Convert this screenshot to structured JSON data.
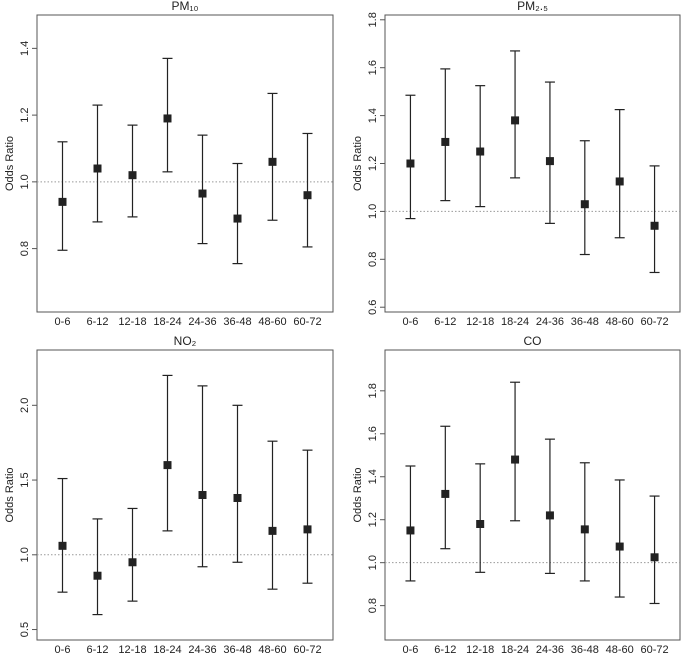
{
  "chart_data": [
    {
      "type": "errorbar",
      "title": "PM₁₀",
      "ylabel": "Odds Ratio",
      "reference_line": 1.0,
      "categories": [
        "0-6",
        "6-12",
        "12-18",
        "18-24",
        "24-36",
        "36-48",
        "48-60",
        "60-72"
      ],
      "values": [
        0.94,
        1.04,
        1.02,
        1.19,
        0.965,
        0.89,
        1.06,
        0.96
      ],
      "lower": [
        0.795,
        0.88,
        0.895,
        1.03,
        0.815,
        0.755,
        0.885,
        0.805
      ],
      "upper": [
        1.12,
        1.23,
        1.17,
        1.37,
        1.14,
        1.055,
        1.265,
        1.145
      ],
      "ylim": [
        0.61,
        1.5
      ],
      "yticks": [
        0.8,
        {
          "value": 1.0,
          "label": "1.0"
        },
        1.2,
        1.4
      ],
      "color": "#222222"
    },
    {
      "type": "errorbar",
      "title": "PM₂.₅",
      "ylabel": "Odds Ratio",
      "reference_line": 1.0,
      "categories": [
        "0-6",
        "6-12",
        "12-18",
        "18-24",
        "24-36",
        "36-48",
        "48-60",
        "60-72"
      ],
      "values": [
        1.2,
        1.29,
        1.25,
        1.38,
        1.21,
        1.03,
        1.125,
        0.94
      ],
      "lower": [
        0.97,
        1.045,
        1.02,
        1.14,
        0.95,
        0.82,
        0.89,
        0.745
      ],
      "upper": [
        1.485,
        1.595,
        1.525,
        1.67,
        1.54,
        1.295,
        1.425,
        1.19
      ],
      "ylim": [
        0.58,
        1.82
      ],
      "yticks": [
        0.6,
        0.8,
        {
          "value": 1.0,
          "label": "1.0"
        },
        1.2,
        1.4,
        1.6,
        1.8
      ],
      "color": "#222222"
    },
    {
      "type": "errorbar",
      "title": "NO₂",
      "ylabel": "Odds Ratio",
      "reference_line": 1.0,
      "categories": [
        "0-6",
        "6-12",
        "12-18",
        "18-24",
        "24-36",
        "36-48",
        "48-60",
        "60-72"
      ],
      "values": [
        1.06,
        0.86,
        0.95,
        1.6,
        1.4,
        1.38,
        1.16,
        1.17
      ],
      "lower": [
        0.75,
        0.6,
        0.69,
        1.16,
        0.92,
        0.95,
        0.77,
        0.81
      ],
      "upper": [
        1.51,
        1.24,
        1.31,
        2.2,
        2.13,
        2.0,
        1.76,
        1.7
      ],
      "ylim": [
        0.43,
        2.37
      ],
      "yticks": [
        0.5,
        {
          "value": 1.0,
          "label": "1.0"
        },
        1.5,
        {
          "value": 2.0,
          "label": "2.0"
        }
      ],
      "color": "#222222"
    },
    {
      "type": "errorbar",
      "title": "CO",
      "ylabel": "Odds Ratio",
      "reference_line": 1.0,
      "categories": [
        "0-6",
        "6-12",
        "12-18",
        "18-24",
        "24-36",
        "36-48",
        "48-60",
        "60-72"
      ],
      "values": [
        1.15,
        1.32,
        1.18,
        1.48,
        1.22,
        1.155,
        1.075,
        1.025
      ],
      "lower": [
        0.915,
        1.065,
        0.955,
        1.195,
        0.95,
        0.915,
        0.84,
        0.81
      ],
      "upper": [
        1.45,
        1.635,
        1.46,
        1.84,
        1.575,
        1.465,
        1.385,
        1.31
      ],
      "ylim": [
        0.64,
        1.99
      ],
      "yticks": [
        0.8,
        {
          "value": 1.0,
          "label": "1.0"
        },
        1.2,
        1.4,
        1.6,
        1.8
      ],
      "color": "#222222"
    }
  ]
}
